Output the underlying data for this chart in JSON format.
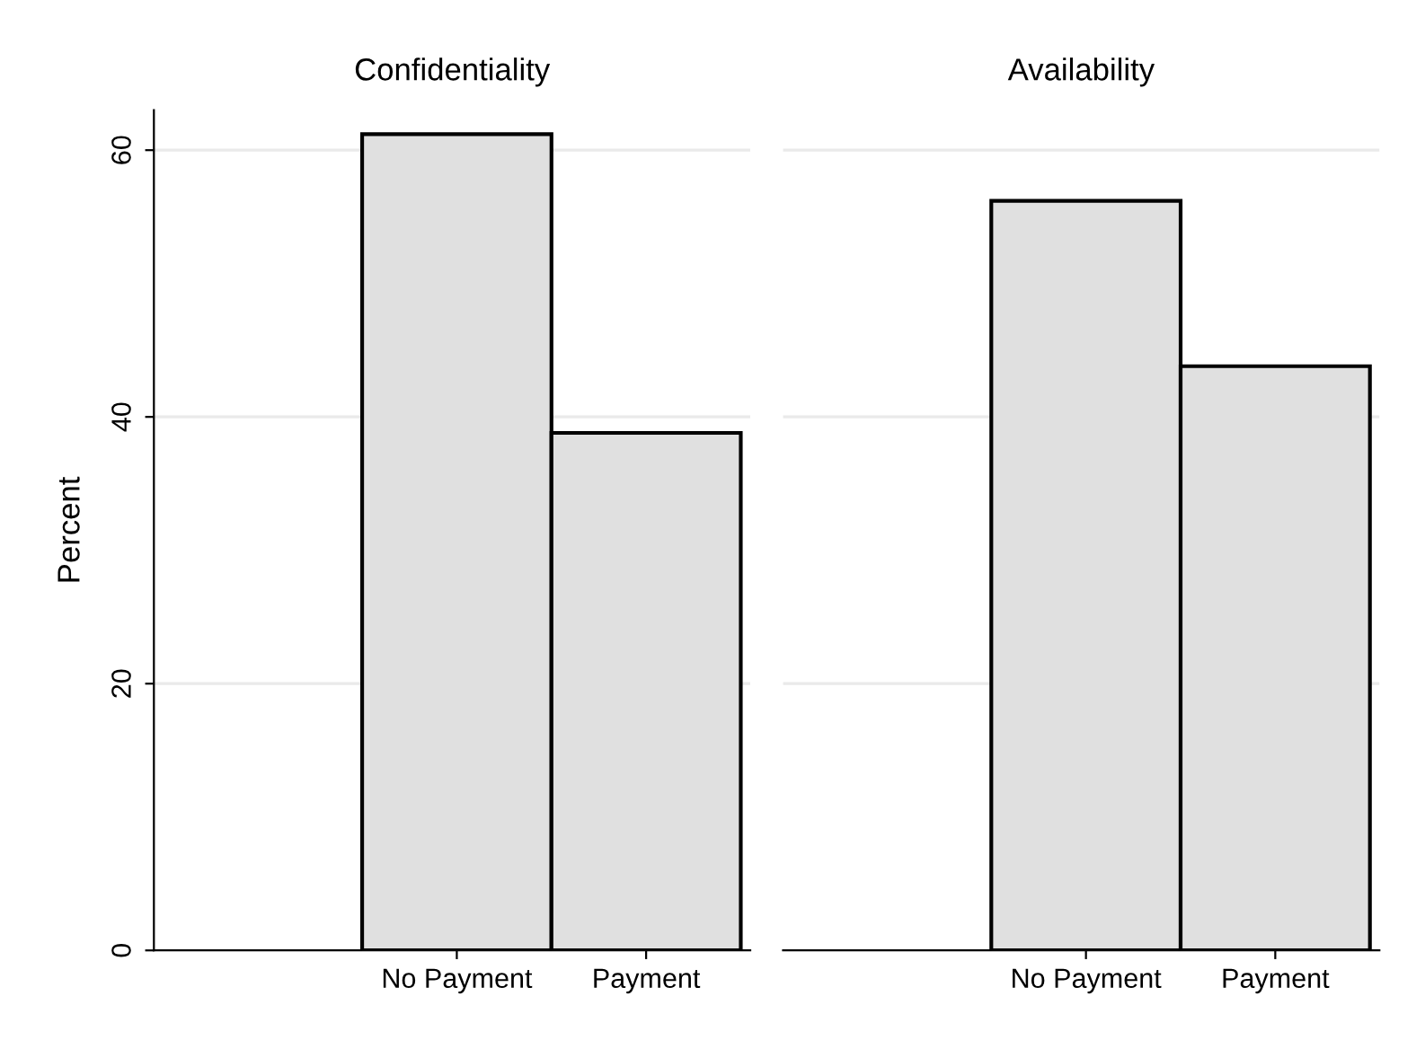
{
  "chart_data": [
    {
      "type": "bar",
      "title": "Confidentiality",
      "ylabel": "Percent",
      "categories": [
        "No Payment",
        "Payment"
      ],
      "values": [
        61.2,
        38.8
      ],
      "color": "#e0e0e0",
      "ylim": [
        0,
        63
      ],
      "yticks": [
        0,
        20,
        40,
        60
      ],
      "grid": "y"
    },
    {
      "type": "bar",
      "title": "Availability",
      "categories": [
        "No Payment",
        "Payment"
      ],
      "values": [
        56.2,
        43.8
      ],
      "color": "#e0e0e0",
      "yticks": [
        0,
        20,
        40,
        60
      ],
      "grid": "y",
      "tick_labels": "x"
    }
  ]
}
